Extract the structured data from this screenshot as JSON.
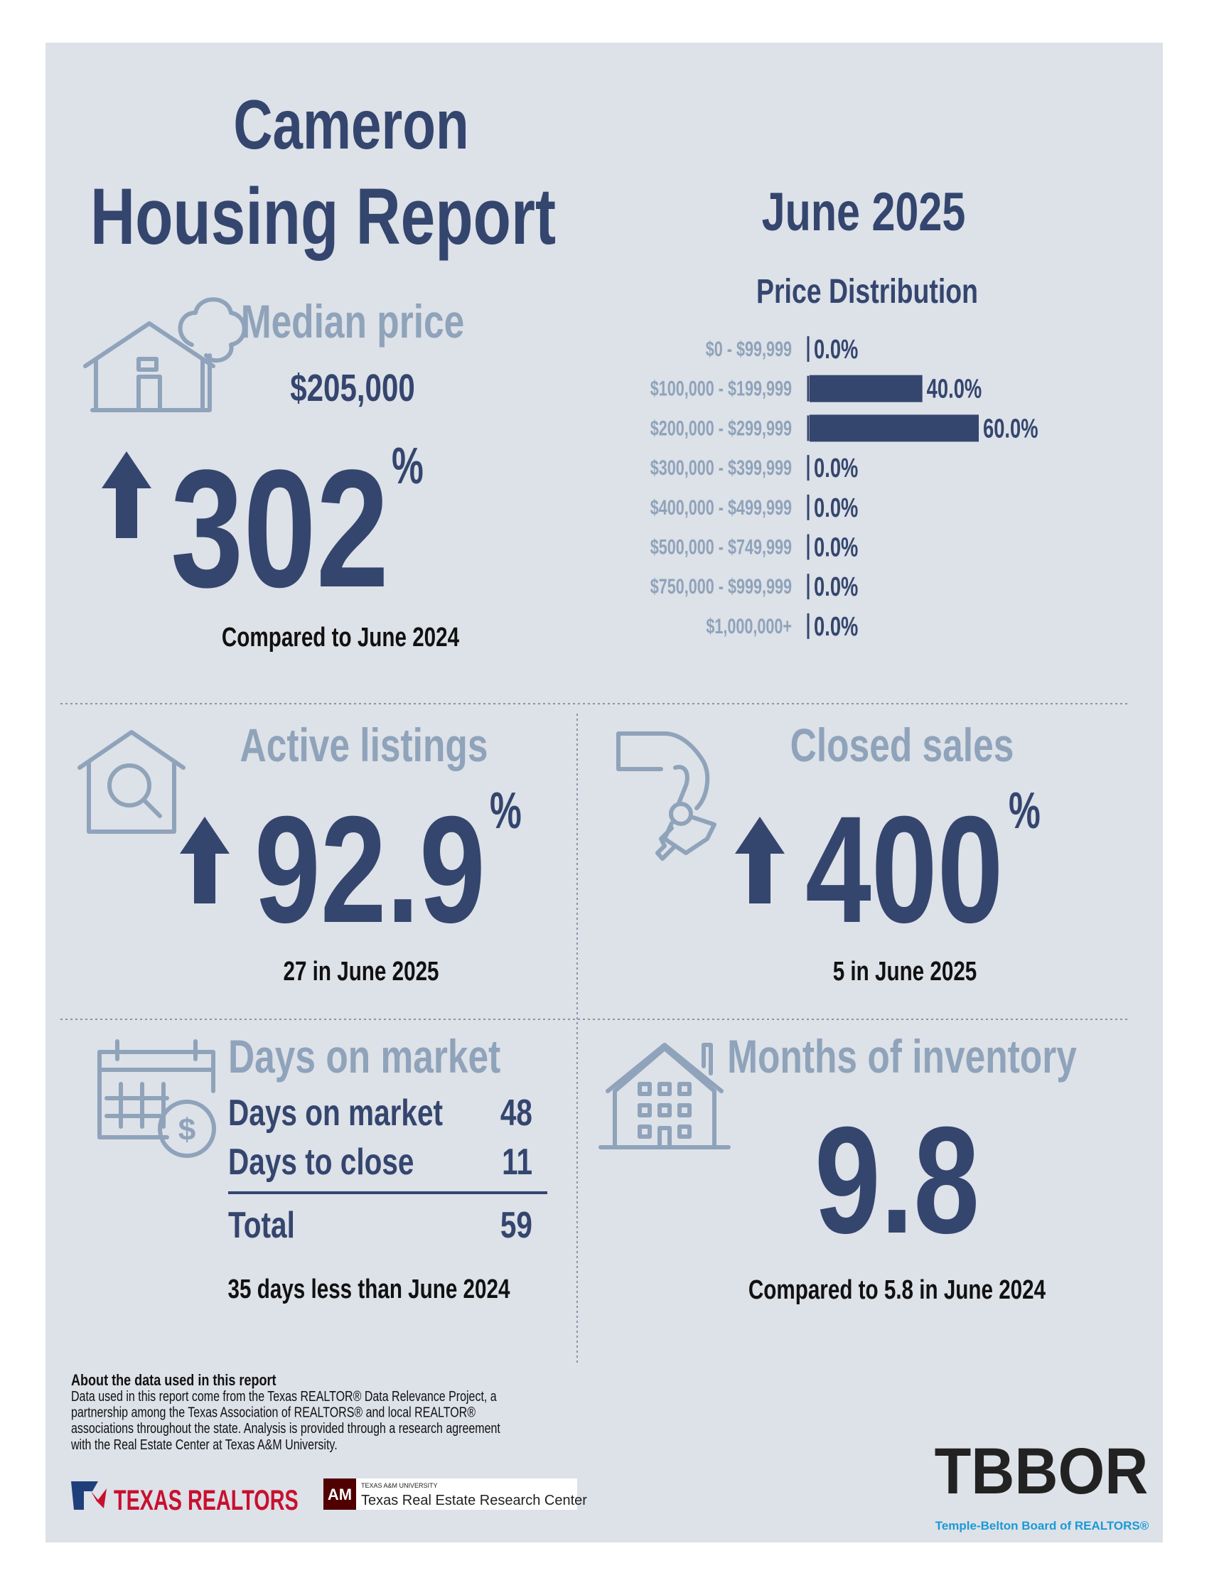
{
  "header": {
    "city": "Cameron",
    "title": "Housing Report",
    "period": "June 2025"
  },
  "price_distribution": {
    "type": "bar",
    "title": "Price Distribution",
    "categories": [
      "$0 - $99,999",
      "$100,000 - $199,999",
      "$200,000 - $299,999",
      "$300,000 - $399,999",
      "$400,000 - $499,999",
      "$500,000 - $749,999",
      "$750,000 - $999,999",
      "$1,000,000+"
    ],
    "values": [
      0,
      40,
      60,
      0,
      0,
      0,
      0,
      0
    ],
    "value_labels": [
      "0.0%",
      "40.0%",
      "60.0%",
      "0.0%",
      "0.0%",
      "0.0%",
      "0.0%",
      "0.0%"
    ],
    "color": "#34466e"
  },
  "median_price": {
    "title": "Median price",
    "price": "$205,000",
    "change": "302",
    "unit": "%",
    "direction": "up",
    "note": "Compared to June 2024"
  },
  "active_listings": {
    "title": "Active listings",
    "change": "92.9",
    "unit": "%",
    "direction": "up",
    "note": "27 in June 2025"
  },
  "closed_sales": {
    "title": "Closed sales",
    "change": "400",
    "unit": "%",
    "direction": "up",
    "note": "5 in June 2025"
  },
  "days_on_market": {
    "title": "Days on market",
    "rows": [
      {
        "label": "Days on market",
        "value": 48
      },
      {
        "label": "Days to close",
        "value": 11
      }
    ],
    "total": {
      "label": "Total",
      "value": 59
    },
    "note": "35 days less than June 2024"
  },
  "months_of_inventory": {
    "title": "Months of inventory",
    "value": "9.8",
    "note": "Compared to 5.8 in June 2024"
  },
  "footer": {
    "about_title": "About the data used in this report",
    "about_lines": [
      "Data used in this report come from the Texas REALTOR® Data Relevance Project, a",
      "partnership among the Texas Association of REALTORS® and local REALTOR®",
      "associations throughout the state. Analysis is provided through a research agreement",
      "with the Real Estate Center at Texas A&M University."
    ],
    "logo_texas_realtors": "TEXAS REALTORS",
    "logo_tamu_small": "TEXAS A&M UNIVERSITY",
    "logo_tamu": "Texas Real Estate Research Center",
    "logo_tbbor": "TBBOR",
    "logo_tbbor_sub": "Temple-Belton Board of REALTORS®"
  }
}
